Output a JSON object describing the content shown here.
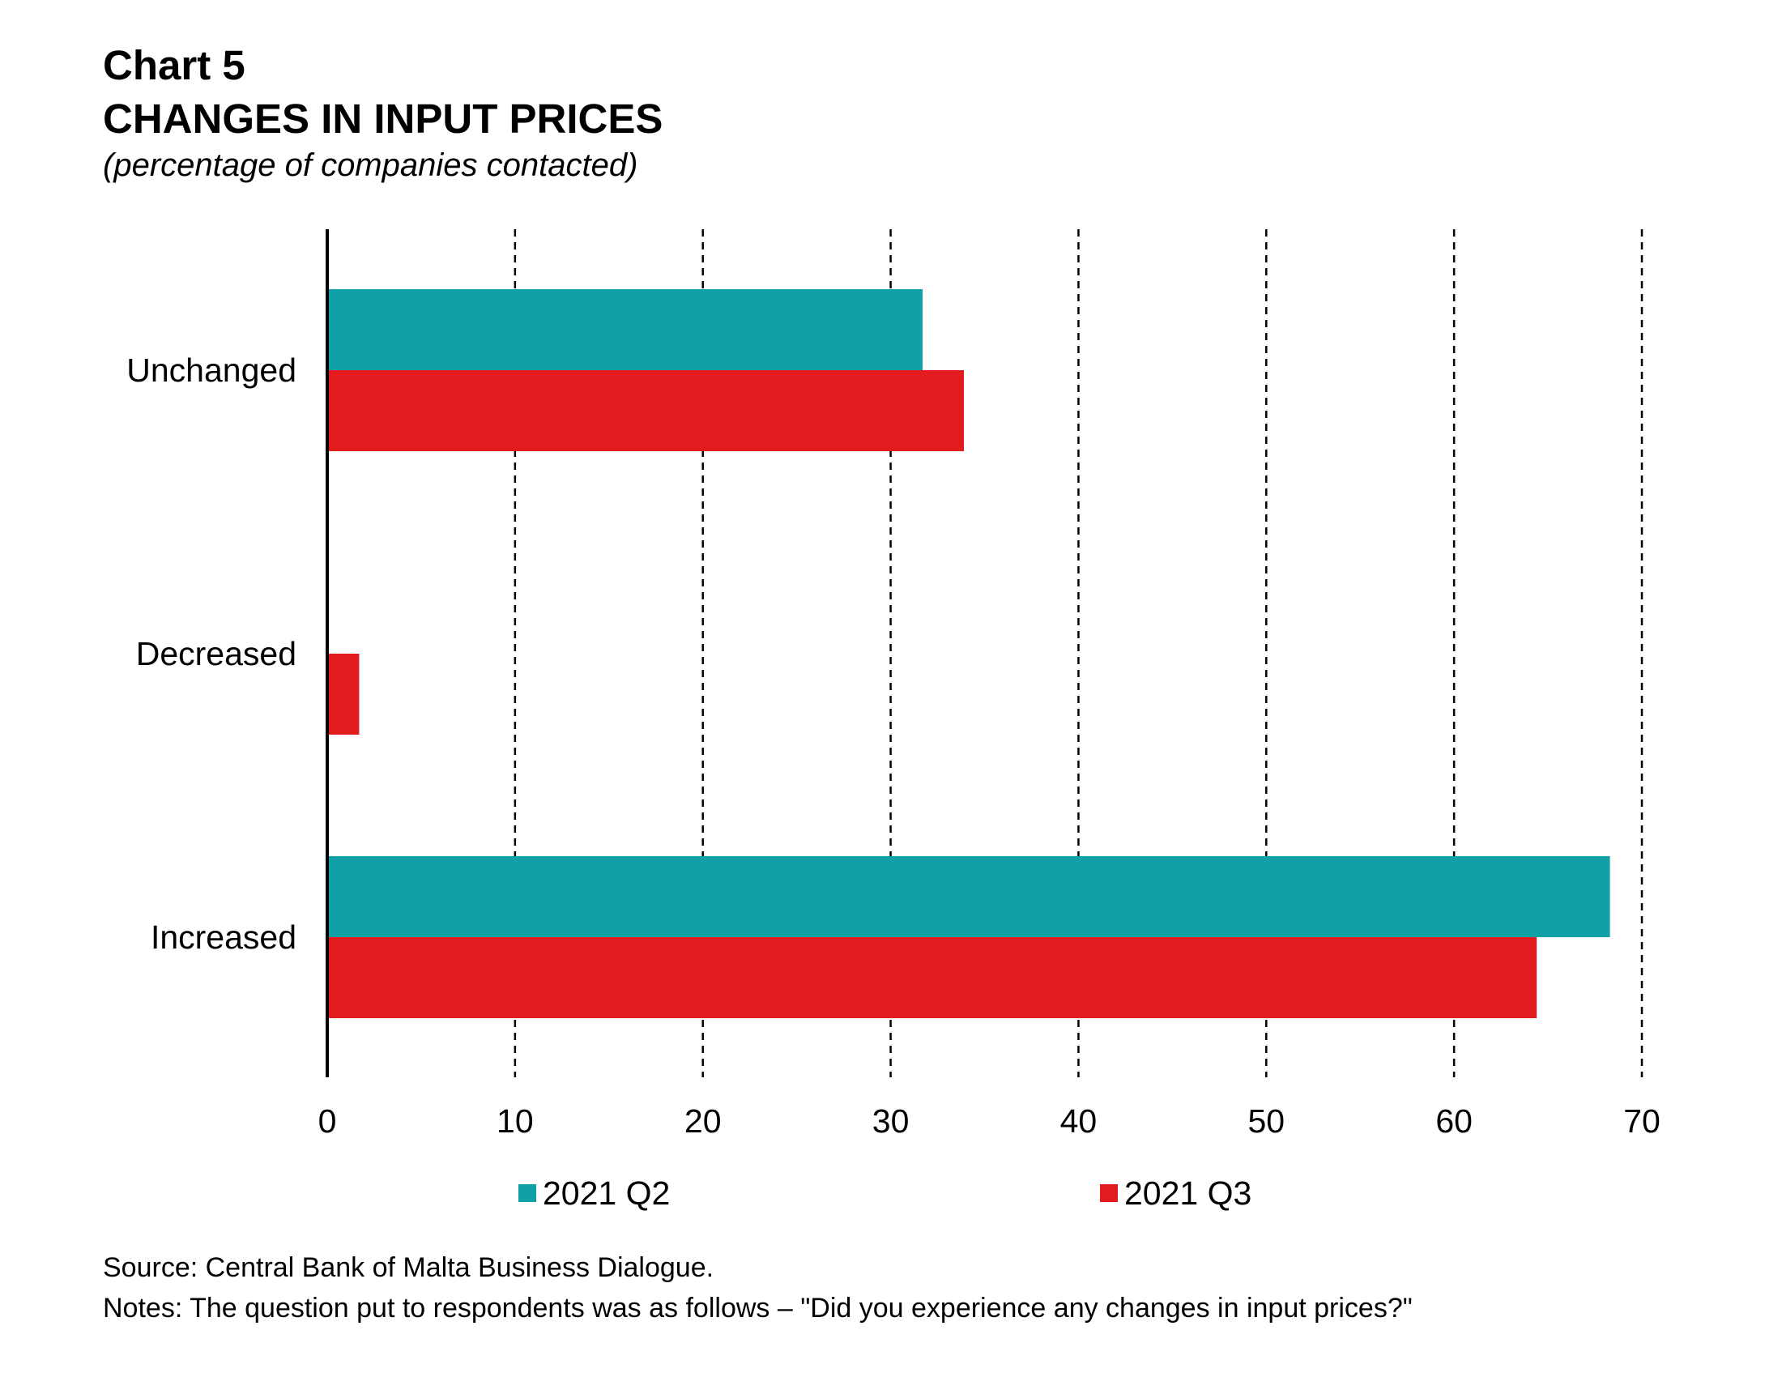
{
  "header": {
    "chart_number": "Chart 5",
    "title": "CHANGES IN INPUT PRICES",
    "subtitle": "(percentage of companies contacted)"
  },
  "chart_data": {
    "type": "bar",
    "orientation": "horizontal",
    "categories": [
      "Unchanged",
      "Decreased",
      "Increased"
    ],
    "series": [
      {
        "name": "2021 Q2",
        "color": "#11A0A5",
        "values": [
          31.7,
          0,
          68.3
        ]
      },
      {
        "name": "2021 Q3",
        "color": "#E11B1E",
        "values": [
          33.9,
          1.7,
          64.4
        ]
      }
    ],
    "xlim": [
      0,
      70
    ],
    "xticks": [
      "0",
      "10",
      "20",
      "30",
      "40",
      "50",
      "60",
      "70"
    ],
    "grid": "vertical dashed",
    "legend_position": "bottom"
  },
  "legend": {
    "items": [
      {
        "label": "2021 Q2",
        "color": "#11A0A5"
      },
      {
        "label": "2021 Q3",
        "color": "#E11B1E"
      }
    ]
  },
  "footer": {
    "source": "Source: Central Bank of Malta Business Dialogue.",
    "notes": "Notes: The question put to respondents was as follows – \"Did you experience any changes in input prices?\""
  }
}
